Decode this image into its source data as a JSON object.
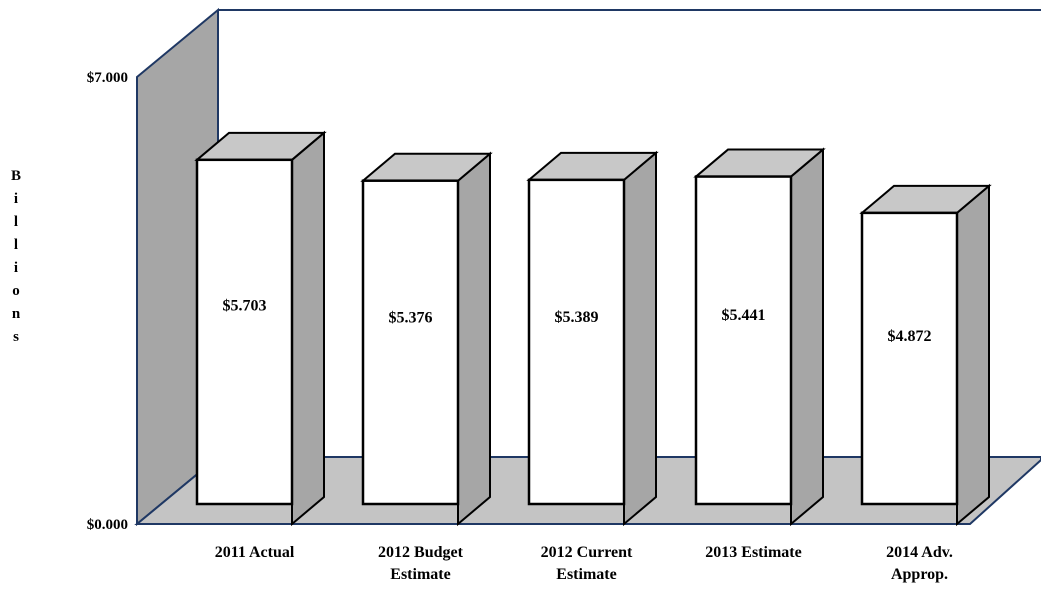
{
  "chart_data": {
    "type": "bar",
    "categories": [
      "2011 Actual",
      "2012 Budget Estimate",
      "2012 Current Estimate",
      "2013 Estimate",
      "2014 Adv. Approp."
    ],
    "category_lines": [
      [
        "2011 Actual"
      ],
      [
        "2012 Budget",
        "Estimate"
      ],
      [
        "2012 Current",
        "Estimate"
      ],
      [
        "2013 Estimate"
      ],
      [
        "2014 Adv.",
        "Approp."
      ]
    ],
    "values": [
      5.703,
      5.376,
      5.389,
      5.441,
      4.872
    ],
    "value_labels": [
      "$5.703",
      "$5.376",
      "$5.389",
      "$5.441",
      "$4.872"
    ],
    "ylabel": "Billions",
    "ylim": [
      0,
      7
    ],
    "y_ticks": [
      {
        "value": 0,
        "label": "$0.000"
      },
      {
        "value": 7,
        "label": "$7.000"
      }
    ],
    "style": "3d-column",
    "grid": false,
    "legend": "none",
    "colors": {
      "bar_front": "#ffffff",
      "bar_side": "#a6a6a6",
      "bar_top": "#c8c8c8",
      "back_wall": "#ffffff",
      "side_wall": "#a6a6a6",
      "floor": "#c4c4c4",
      "outline": "#000000",
      "wall_edge": "#1f3864"
    }
  }
}
